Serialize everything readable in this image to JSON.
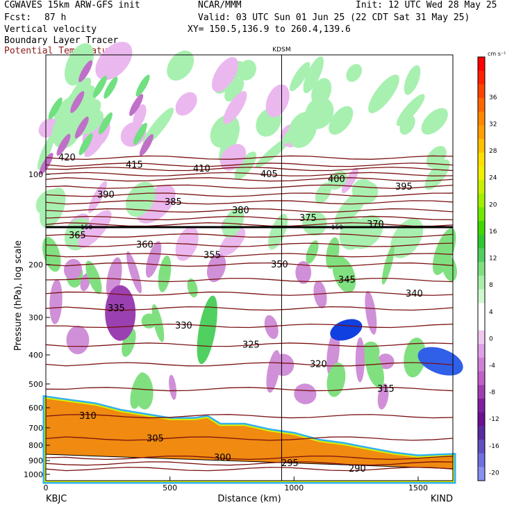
{
  "header": {
    "model": "CGWAVES 15km ARW-GFS init",
    "fcst_label": "Fcst:",
    "fcst_value": "87 h",
    "center": "NCAR/MMM",
    "init": "Init: 12 UTC Wed 28 May 25",
    "valid": "Valid: 03 UTC Sun 01 Jun 25 (22 CDT Sat 31 May 25)",
    "xy": "XY= 150.5,136.9 to 260.4,139.6",
    "field1": "Vertical velocity",
    "field2": "Boundary Layer Tracer",
    "field3": "Potential Temperature"
  },
  "colors": {
    "theta_line": "#7a1010",
    "terrain": "#f08a10",
    "updraft_green": "#66e070",
    "downdraft_purple": "#c060c8"
  },
  "chart_data": {
    "type": "cross-section",
    "xlabel": "Distance (km)",
    "ylabel": "Pressure (hPa), log scale",
    "xlim": [
      0,
      1640
    ],
    "ylim": [
      1050,
      40
    ],
    "y_scale": "log",
    "x_ticks": [
      "0",
      "500",
      "1000",
      "1500"
    ],
    "y_ticks": [
      "100",
      "200",
      "300",
      "400",
      "500",
      "600",
      "700",
      "800",
      "900",
      "1000"
    ],
    "y_tick_values": [
      100,
      200,
      300,
      400,
      500,
      600,
      700,
      800,
      900,
      1000
    ],
    "x_tick_values": [
      0,
      500,
      1000,
      1500
    ],
    "left_station": "KBJC",
    "right_station": "KIND",
    "marker_station": "KDSM",
    "marker_x_km": 950,
    "tropopause_label": "150",
    "colorbar": {
      "unit": "cm s⁻¹",
      "ticks": [
        "36",
        "32",
        "28",
        "24",
        "20",
        "16",
        "12",
        "8",
        "4",
        "0",
        "-4",
        "-8",
        "-12",
        "-16",
        "-20"
      ],
      "colors": [
        "#ff0000",
        "#ff2200",
        "#ff4400",
        "#ff6600",
        "#ff8800",
        "#ffa000",
        "#ffc000",
        "#ffe000",
        "#f0f000",
        "#c8f000",
        "#a0f000",
        "#70e800",
        "#40d800",
        "#30c830",
        "#50d060",
        "#80e080",
        "#a8f0a8",
        "#d0f8d0",
        "#ffffff",
        "#ffffff",
        "#f0c8f0",
        "#e0a0e8",
        "#d080d8",
        "#c060c8",
        "#a040b0",
        "#8020a0",
        "#6a1090",
        "#5a2aa0",
        "#6050c0",
        "#7070e0",
        "#8890f0"
      ]
    },
    "theta_contours": [
      {
        "value": 420,
        "label": "420",
        "p": 88
      },
      {
        "value": 415,
        "label": "415",
        "p": 93
      },
      {
        "value": 410,
        "label": "410",
        "p": 96
      },
      {
        "value": 405,
        "label": "405",
        "p": 100
      },
      {
        "value": 400,
        "label": "400",
        "p": 104
      },
      {
        "value": 395,
        "label": "395",
        "p": 110
      },
      {
        "value": 390,
        "label": "390",
        "p": 117
      },
      {
        "value": 385,
        "label": "385",
        "p": 124
      },
      {
        "value": 380,
        "label": "380",
        "p": 132
      },
      {
        "value": 375,
        "label": "375",
        "p": 140
      },
      {
        "value": 370,
        "label": "370",
        "p": 147
      },
      {
        "value": 365,
        "label": "365",
        "p": 160
      },
      {
        "value": 360,
        "label": "360",
        "p": 172
      },
      {
        "value": 355,
        "label": "355",
        "p": 186
      },
      {
        "value": 350,
        "label": "350",
        "p": 200
      },
      {
        "value": 345,
        "label": "345",
        "p": 225
      },
      {
        "value": 340,
        "label": "340",
        "p": 250
      },
      {
        "value": 335,
        "label": "335",
        "p": 280
      },
      {
        "value": 330,
        "label": "330",
        "p": 320
      },
      {
        "value": 325,
        "label": "325",
        "p": 370
      },
      {
        "value": 320,
        "label": "320",
        "p": 430
      },
      {
        "value": 315,
        "label": "315",
        "p": 520
      },
      {
        "value": 310,
        "label": "310",
        "p": 640
      },
      {
        "value": 305,
        "label": "305",
        "p": 760
      },
      {
        "value": 300,
        "label": "300",
        "p": 880
      },
      {
        "value": 295,
        "label": "295",
        "p": 920
      },
      {
        "value": 290,
        "label": "290",
        "p": 960
      }
    ],
    "terrain_profile": {
      "x_km": [
        0,
        100,
        200,
        300,
        400,
        500,
        600,
        650,
        700,
        800,
        900,
        1000,
        1100,
        1200,
        1300,
        1400,
        1500,
        1640
      ],
      "p_hpa": [
        560,
        575,
        590,
        620,
        640,
        660,
        660,
        650,
        690,
        690,
        720,
        740,
        780,
        800,
        830,
        860,
        880,
        870
      ]
    }
  }
}
